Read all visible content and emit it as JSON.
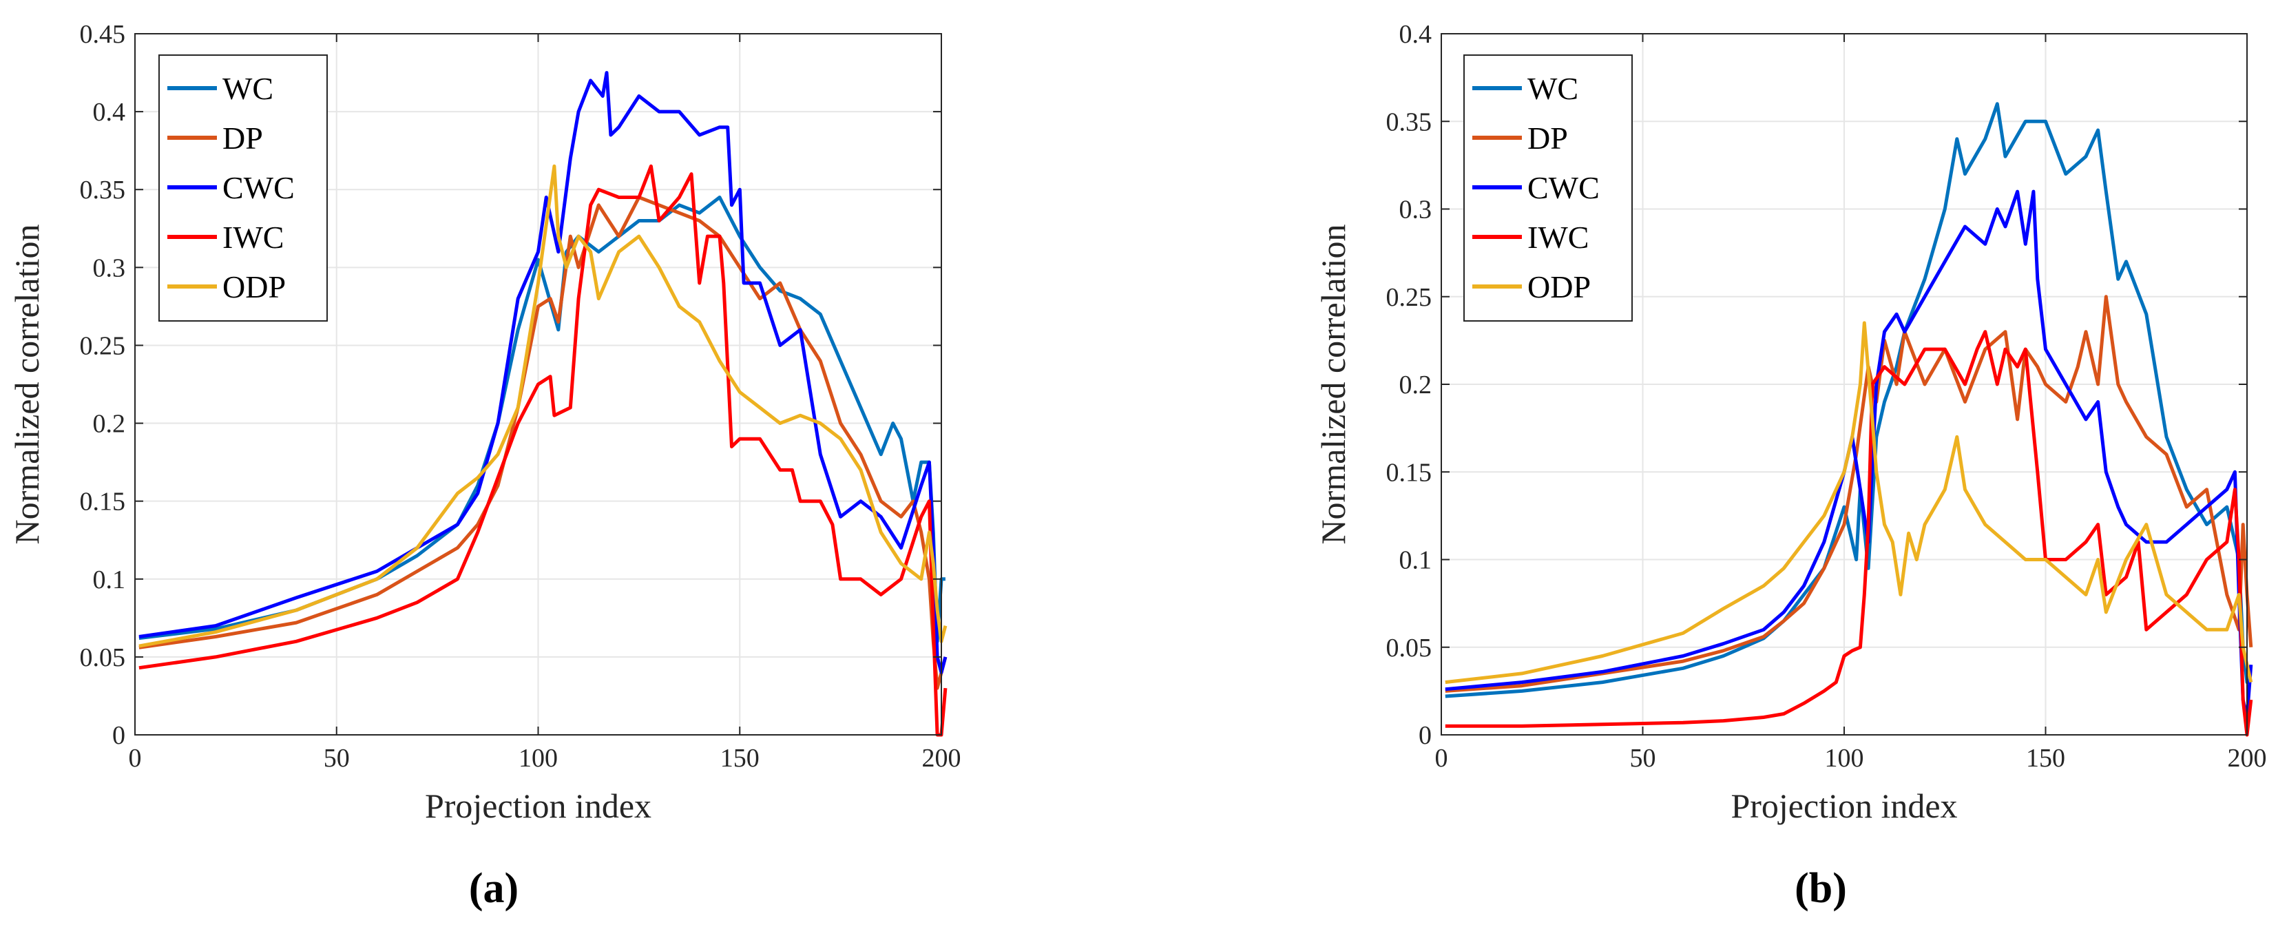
{
  "chart_data": [
    {
      "type": "line",
      "panel_label": "(a)",
      "xlabel": "Projection index",
      "ylabel": "Normalized correlation",
      "xlim": [
        0,
        200
      ],
      "ylim": [
        0,
        0.45
      ],
      "grid": true,
      "legend_position": "top-left",
      "xticks": [
        "0",
        "50",
        "100",
        "150",
        "200"
      ],
      "yticks": [
        "0",
        "0.05",
        "0.1",
        "0.15",
        "0.2",
        "0.25",
        "0.3",
        "0.35",
        "0.4",
        "0.45"
      ],
      "series": [
        {
          "name": "WC",
          "color": "#0072BD",
          "x": [
            1,
            20,
            40,
            60,
            70,
            80,
            85,
            90,
            95,
            100,
            105,
            107,
            110,
            115,
            120,
            125,
            130,
            135,
            140,
            145,
            150,
            155,
            160,
            165,
            170,
            175,
            180,
            185,
            188,
            190,
            193,
            195,
            197,
            198,
            199,
            200,
            201
          ],
          "y": [
            0.062,
            0.068,
            0.08,
            0.1,
            0.115,
            0.135,
            0.16,
            0.2,
            0.26,
            0.305,
            0.26,
            0.31,
            0.32,
            0.31,
            0.32,
            0.33,
            0.33,
            0.34,
            0.335,
            0.345,
            0.32,
            0.3,
            0.285,
            0.28,
            0.27,
            0.24,
            0.21,
            0.18,
            0.2,
            0.19,
            0.15,
            0.175,
            0.175,
            0.13,
            0.06,
            0.1,
            0.1
          ]
        },
        {
          "name": "DP",
          "color": "#D95319",
          "x": [
            1,
            20,
            40,
            60,
            70,
            80,
            85,
            90,
            95,
            100,
            103,
            105,
            108,
            110,
            115,
            120,
            125,
            130,
            135,
            140,
            145,
            150,
            155,
            160,
            165,
            170,
            175,
            180,
            185,
            190,
            193,
            195,
            197,
            198,
            199,
            200,
            201
          ],
          "y": [
            0.056,
            0.063,
            0.072,
            0.09,
            0.105,
            0.12,
            0.135,
            0.16,
            0.21,
            0.275,
            0.28,
            0.265,
            0.32,
            0.3,
            0.34,
            0.32,
            0.345,
            0.34,
            0.335,
            0.33,
            0.32,
            0.3,
            0.28,
            0.29,
            0.26,
            0.24,
            0.2,
            0.18,
            0.15,
            0.14,
            0.15,
            0.13,
            0.1,
            0.06,
            0.03,
            0.04,
            0.05
          ]
        },
        {
          "name": "CWC",
          "color": "#0000FF",
          "x": [
            1,
            20,
            40,
            60,
            70,
            80,
            85,
            90,
            95,
            100,
            102,
            105,
            108,
            110,
            113,
            116,
            117,
            118,
            120,
            125,
            130,
            135,
            140,
            145,
            147,
            148,
            150,
            151,
            155,
            160,
            165,
            170,
            175,
            180,
            185,
            190,
            195,
            197,
            198,
            199,
            200,
            201
          ],
          "y": [
            0.063,
            0.07,
            0.088,
            0.105,
            0.12,
            0.135,
            0.155,
            0.2,
            0.28,
            0.31,
            0.345,
            0.31,
            0.37,
            0.4,
            0.42,
            0.41,
            0.425,
            0.385,
            0.39,
            0.41,
            0.4,
            0.4,
            0.385,
            0.39,
            0.39,
            0.34,
            0.35,
            0.29,
            0.29,
            0.25,
            0.26,
            0.18,
            0.14,
            0.15,
            0.14,
            0.12,
            0.16,
            0.175,
            0.12,
            0.05,
            0.04,
            0.05
          ]
        },
        {
          "name": "IWC",
          "color": "#FF0000",
          "x": [
            1,
            20,
            40,
            60,
            70,
            80,
            85,
            90,
            95,
            100,
            103,
            104,
            108,
            110,
            113,
            115,
            120,
            125,
            128,
            130,
            135,
            138,
            140,
            142,
            145,
            146,
            148,
            150,
            155,
            160,
            163,
            165,
            170,
            173,
            175,
            180,
            185,
            190,
            195,
            197,
            198,
            199,
            200,
            201
          ],
          "y": [
            0.043,
            0.05,
            0.06,
            0.075,
            0.085,
            0.1,
            0.13,
            0.165,
            0.2,
            0.225,
            0.23,
            0.205,
            0.21,
            0.28,
            0.34,
            0.35,
            0.345,
            0.345,
            0.365,
            0.33,
            0.345,
            0.36,
            0.29,
            0.32,
            0.32,
            0.29,
            0.185,
            0.19,
            0.19,
            0.17,
            0.17,
            0.15,
            0.15,
            0.135,
            0.1,
            0.1,
            0.09,
            0.1,
            0.14,
            0.15,
            0.07,
            0.0,
            0.0,
            0.03
          ]
        },
        {
          "name": "ODP",
          "color": "#EDB120",
          "x": [
            1,
            20,
            40,
            60,
            70,
            80,
            85,
            90,
            95,
            100,
            104,
            105,
            107,
            110,
            113,
            115,
            120,
            125,
            130,
            135,
            140,
            145,
            150,
            155,
            160,
            165,
            170,
            175,
            180,
            185,
            190,
            195,
            197,
            198,
            199,
            200,
            201
          ],
          "y": [
            0.057,
            0.066,
            0.08,
            0.1,
            0.12,
            0.155,
            0.165,
            0.18,
            0.21,
            0.29,
            0.365,
            0.32,
            0.3,
            0.32,
            0.31,
            0.28,
            0.31,
            0.32,
            0.3,
            0.275,
            0.265,
            0.24,
            0.22,
            0.21,
            0.2,
            0.205,
            0.2,
            0.19,
            0.17,
            0.13,
            0.11,
            0.1,
            0.13,
            0.11,
            0.08,
            0.06,
            0.07
          ]
        }
      ],
      "legend": [
        "WC",
        "DP",
        "CWC",
        "IWC",
        "ODP"
      ]
    },
    {
      "type": "line",
      "panel_label": "(b)",
      "xlabel": "Projection index",
      "ylabel": "Normalized correlation",
      "xlim": [
        0,
        200
      ],
      "ylim": [
        0,
        0.4
      ],
      "grid": true,
      "legend_position": "top-left",
      "xticks": [
        "0",
        "50",
        "100",
        "150",
        "200"
      ],
      "yticks": [
        "0",
        "0.05",
        "0.1",
        "0.15",
        "0.2",
        "0.25",
        "0.3",
        "0.35",
        "0.4"
      ],
      "series": [
        {
          "name": "WC",
          "color": "#0072BD",
          "x": [
            1,
            20,
            40,
            60,
            70,
            80,
            85,
            90,
            95,
            100,
            103,
            104,
            106,
            108,
            110,
            113,
            115,
            120,
            125,
            128,
            130,
            135,
            138,
            140,
            145,
            150,
            155,
            160,
            163,
            165,
            168,
            170,
            175,
            180,
            185,
            190,
            195,
            198,
            199,
            200,
            201
          ],
          "y": [
            0.022,
            0.025,
            0.03,
            0.038,
            0.045,
            0.055,
            0.065,
            0.08,
            0.095,
            0.13,
            0.1,
            0.14,
            0.095,
            0.17,
            0.19,
            0.21,
            0.23,
            0.26,
            0.3,
            0.34,
            0.32,
            0.34,
            0.36,
            0.33,
            0.35,
            0.35,
            0.32,
            0.33,
            0.345,
            0.31,
            0.26,
            0.27,
            0.24,
            0.17,
            0.14,
            0.12,
            0.13,
            0.1,
            0.05,
            0.03,
            0.03
          ]
        },
        {
          "name": "DP",
          "color": "#D95319",
          "x": [
            1,
            20,
            40,
            60,
            70,
            80,
            85,
            90,
            95,
            100,
            103,
            106,
            108,
            110,
            113,
            115,
            120,
            125,
            130,
            135,
            140,
            143,
            145,
            148,
            150,
            155,
            158,
            160,
            163,
            165,
            168,
            170,
            175,
            180,
            185,
            190,
            195,
            198,
            199,
            200,
            201
          ],
          "y": [
            0.025,
            0.028,
            0.035,
            0.042,
            0.048,
            0.056,
            0.065,
            0.075,
            0.095,
            0.12,
            0.16,
            0.21,
            0.19,
            0.225,
            0.2,
            0.23,
            0.2,
            0.22,
            0.19,
            0.22,
            0.23,
            0.18,
            0.22,
            0.21,
            0.2,
            0.19,
            0.21,
            0.23,
            0.2,
            0.25,
            0.2,
            0.19,
            0.17,
            0.16,
            0.13,
            0.14,
            0.08,
            0.06,
            0.12,
            0.08,
            0.05
          ]
        },
        {
          "name": "CWC",
          "color": "#0000FF",
          "x": [
            1,
            20,
            40,
            60,
            70,
            80,
            85,
            90,
            95,
            100,
            102,
            104,
            106,
            108,
            110,
            113,
            115,
            120,
            125,
            130,
            135,
            138,
            140,
            143,
            145,
            147,
            148,
            150,
            155,
            160,
            163,
            165,
            168,
            170,
            175,
            180,
            185,
            190,
            195,
            197,
            198,
            199,
            200,
            201
          ],
          "y": [
            0.026,
            0.03,
            0.036,
            0.045,
            0.052,
            0.06,
            0.07,
            0.085,
            0.11,
            0.15,
            0.17,
            0.14,
            0.11,
            0.2,
            0.23,
            0.24,
            0.23,
            0.25,
            0.27,
            0.29,
            0.28,
            0.3,
            0.29,
            0.31,
            0.28,
            0.31,
            0.26,
            0.22,
            0.2,
            0.18,
            0.19,
            0.15,
            0.13,
            0.12,
            0.11,
            0.11,
            0.12,
            0.13,
            0.14,
            0.15,
            0.08,
            0.02,
            0.01,
            0.04
          ]
        },
        {
          "name": "IWC",
          "color": "#FF0000",
          "x": [
            1,
            20,
            40,
            60,
            70,
            80,
            85,
            90,
            95,
            98,
            100,
            102,
            104,
            105,
            106,
            107,
            110,
            115,
            120,
            125,
            130,
            133,
            135,
            138,
            140,
            143,
            145,
            148,
            150,
            155,
            160,
            163,
            165,
            170,
            173,
            175,
            180,
            185,
            190,
            195,
            197,
            198,
            199,
            200,
            201
          ],
          "y": [
            0.005,
            0.005,
            0.006,
            0.007,
            0.008,
            0.01,
            0.012,
            0.018,
            0.025,
            0.03,
            0.045,
            0.048,
            0.05,
            0.08,
            0.12,
            0.2,
            0.21,
            0.2,
            0.22,
            0.22,
            0.2,
            0.22,
            0.23,
            0.2,
            0.22,
            0.21,
            0.22,
            0.15,
            0.1,
            0.1,
            0.11,
            0.12,
            0.08,
            0.09,
            0.11,
            0.06,
            0.07,
            0.08,
            0.1,
            0.11,
            0.14,
            0.1,
            0.02,
            0.0,
            0.02
          ]
        },
        {
          "name": "ODP",
          "color": "#EDB120",
          "x": [
            1,
            20,
            40,
            60,
            70,
            80,
            85,
            90,
            95,
            100,
            102,
            104,
            105,
            107,
            108,
            110,
            112,
            114,
            116,
            118,
            120,
            125,
            128,
            130,
            135,
            140,
            145,
            150,
            155,
            160,
            163,
            165,
            170,
            175,
            180,
            185,
            190,
            195,
            198,
            199,
            200,
            201
          ],
          "y": [
            0.03,
            0.035,
            0.045,
            0.058,
            0.072,
            0.085,
            0.095,
            0.11,
            0.125,
            0.15,
            0.17,
            0.2,
            0.235,
            0.18,
            0.15,
            0.12,
            0.11,
            0.08,
            0.115,
            0.1,
            0.12,
            0.14,
            0.17,
            0.14,
            0.12,
            0.11,
            0.1,
            0.1,
            0.09,
            0.08,
            0.1,
            0.07,
            0.1,
            0.12,
            0.08,
            0.07,
            0.06,
            0.06,
            0.08,
            0.05,
            0.04,
            0.03
          ]
        }
      ],
      "legend": [
        "WC",
        "DP",
        "CWC",
        "IWC",
        "ODP"
      ]
    }
  ]
}
